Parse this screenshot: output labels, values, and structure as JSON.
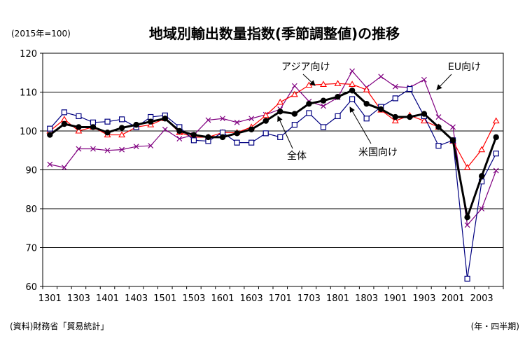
{
  "chart_data": {
    "type": "line",
    "title": "地域別輸出数量指数(季節調整値)の推移",
    "unit_note": "(2015年=100)",
    "source": "(資料)財務省「貿易統計」",
    "xlabel": "(年・四半期)",
    "ylabel": "",
    "ylim": [
      60,
      120
    ],
    "yticks": [
      60,
      70,
      80,
      90,
      100,
      110,
      120
    ],
    "grid": true,
    "x": [
      "1301",
      "1302",
      "1303",
      "1304",
      "1401",
      "1402",
      "1403",
      "1404",
      "1501",
      "1502",
      "1503",
      "1504",
      "1601",
      "1602",
      "1603",
      "1604",
      "1701",
      "1702",
      "1703",
      "1704",
      "1801",
      "1802",
      "1803",
      "1804",
      "1901",
      "1902",
      "1903",
      "1904",
      "2001",
      "2002",
      "2003",
      "2004"
    ],
    "xtick_labels": [
      "1301",
      "1303",
      "1401",
      "1403",
      "1501",
      "1503",
      "1601",
      "1603",
      "1701",
      "1703",
      "1801",
      "1803",
      "1901",
      "1903",
      "2001",
      "2003"
    ],
    "series": [
      {
        "name": "全体",
        "color": "#000000",
        "marker": "circle",
        "values": [
          99.0,
          101.8,
          101.0,
          101.0,
          99.6,
          100.8,
          101.6,
          102.4,
          103.2,
          100.0,
          99.0,
          98.4,
          98.4,
          99.4,
          100.4,
          102.6,
          105.0,
          104.4,
          107.0,
          107.8,
          108.8,
          110.4,
          107.0,
          105.6,
          103.6,
          103.6,
          104.4,
          101.0,
          97.6,
          77.8,
          88.4,
          98.4
        ]
      },
      {
        "name": "米国向け",
        "color": "#000080",
        "marker": "square",
        "values": [
          100.6,
          104.8,
          103.8,
          102.2,
          102.4,
          103.0,
          101.0,
          103.6,
          104.0,
          101.0,
          97.6,
          97.4,
          99.6,
          97.0,
          97.0,
          99.4,
          98.4,
          101.6,
          104.6,
          101.0,
          103.8,
          108.2,
          103.2,
          106.2,
          108.4,
          110.8,
          103.8,
          96.2,
          97.6,
          62.0,
          87.0,
          94.2
        ]
      },
      {
        "name": "アジア向け",
        "color": "#ff0000",
        "marker": "triangle",
        "values": [
          100.0,
          103.0,
          100.0,
          101.0,
          99.0,
          99.0,
          101.0,
          101.6,
          103.2,
          99.6,
          98.4,
          98.4,
          99.6,
          99.6,
          101.0,
          104.0,
          107.4,
          109.4,
          111.8,
          112.0,
          112.2,
          112.0,
          110.6,
          105.4,
          102.6,
          104.0,
          102.6,
          101.0,
          97.4,
          90.6,
          95.2,
          102.6
        ]
      },
      {
        "name": "EU向け",
        "color": "#800080",
        "marker": "x",
        "values": [
          91.4,
          90.6,
          95.4,
          95.4,
          95.0,
          95.2,
          96.0,
          96.2,
          100.4,
          98.0,
          99.0,
          102.8,
          103.2,
          102.2,
          103.2,
          104.2,
          105.6,
          111.6,
          107.6,
          106.4,
          108.6,
          115.4,
          111.2,
          114.0,
          111.4,
          111.2,
          113.2,
          103.6,
          101.0,
          75.8,
          80.0,
          89.8
        ]
      }
    ],
    "annotations": [
      {
        "text": "アジア向け",
        "series": "アジア向け"
      },
      {
        "text": "EU向け",
        "series": "EU向け"
      },
      {
        "text": "全体",
        "series": "全体"
      },
      {
        "text": "米国向け",
        "series": "米国向け"
      }
    ]
  }
}
